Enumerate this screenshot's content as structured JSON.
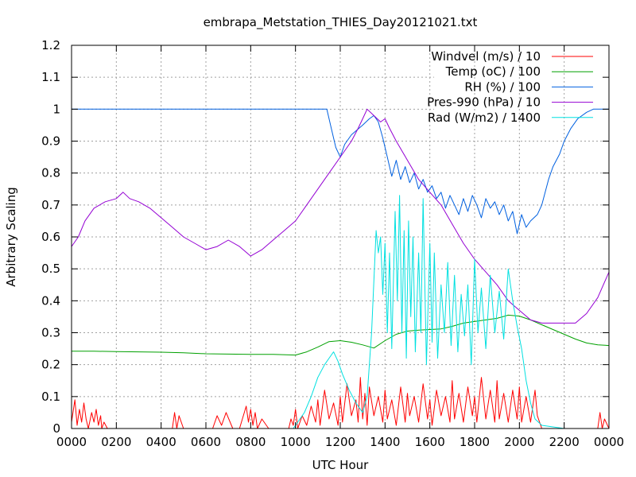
{
  "chart_data": {
    "type": "line",
    "title": "embrapa_Metstation_THIES_Day20121021.txt",
    "xlabel": "UTC Hour",
    "ylabel": "Arbitrary Scaling",
    "xlim": [
      0,
      24
    ],
    "ylim": [
      0,
      1.2
    ],
    "grid": true,
    "legend_position": "top-right",
    "x_tick_labels": [
      "0000",
      "0200",
      "0400",
      "0600",
      "0800",
      "1000",
      "1200",
      "1400",
      "1600",
      "1800",
      "2000",
      "2200",
      "0000"
    ],
    "y_tick_labels": [
      "0",
      "0.1",
      "0.2",
      "0.3",
      "0.4",
      "0.5",
      "0.6",
      "0.7",
      "0.8",
      "0.9",
      "1",
      "1.1",
      "1.2"
    ],
    "series": [
      {
        "name": "Windvel (m/s) / 10",
        "color": "#ff0000",
        "x": [
          0,
          0.15,
          0.25,
          0.35,
          0.45,
          0.55,
          0.65,
          0.75,
          0.9,
          1.0,
          1.1,
          1.2,
          1.3,
          1.35,
          1.45,
          1.6,
          2.0,
          2.5,
          3.0,
          4.5,
          4.6,
          4.7,
          4.8,
          5.0,
          6.3,
          6.5,
          6.7,
          6.9,
          7.2,
          7.5,
          7.8,
          7.9,
          8.0,
          8.1,
          8.2,
          8.3,
          8.5,
          8.8,
          9.0,
          9.7,
          9.8,
          9.9,
          10.0,
          10.1,
          10.3,
          10.5,
          10.7,
          10.9,
          11.0,
          11.1,
          11.3,
          11.5,
          11.7,
          11.9,
          12.0,
          12.1,
          12.3,
          12.5,
          12.7,
          12.8,
          12.9,
          13.0,
          13.1,
          13.2,
          13.3,
          13.5,
          13.7,
          13.9,
          14.0,
          14.1,
          14.3,
          14.5,
          14.7,
          14.9,
          15.0,
          15.1,
          15.3,
          15.5,
          15.7,
          15.9,
          16.0,
          16.1,
          16.3,
          16.5,
          16.7,
          16.9,
          17.0,
          17.1,
          17.3,
          17.5,
          17.7,
          17.9,
          18.0,
          18.1,
          18.3,
          18.5,
          18.7,
          18.9,
          19.0,
          19.1,
          19.3,
          19.5,
          19.7,
          19.9,
          20.0,
          20.1,
          20.3,
          20.5,
          20.7,
          20.8,
          21.0,
          21.5,
          22.0,
          22.5,
          23.0,
          23.5,
          23.6,
          23.7,
          23.8,
          24.0
        ],
        "values": [
          0.02,
          0.09,
          0.01,
          0.06,
          0.02,
          0.08,
          0.03,
          0.0,
          0.05,
          0.02,
          0.06,
          0.01,
          0.04,
          0.0,
          0.02,
          0.0,
          0.0,
          0.0,
          0.0,
          0.0,
          0.05,
          0.0,
          0.04,
          0.0,
          0.0,
          0.04,
          0.01,
          0.05,
          0.0,
          0.0,
          0.07,
          0.02,
          0.06,
          0.01,
          0.05,
          0.0,
          0.03,
          0.0,
          0.0,
          0.0,
          0.03,
          0.01,
          0.06,
          0.0,
          0.04,
          0.01,
          0.07,
          0.02,
          0.09,
          0.01,
          0.12,
          0.03,
          0.08,
          0.01,
          0.1,
          0.02,
          0.14,
          0.04,
          0.09,
          0.02,
          0.16,
          0.03,
          0.11,
          0.01,
          0.13,
          0.04,
          0.1,
          0.02,
          0.12,
          0.03,
          0.09,
          0.01,
          0.13,
          0.02,
          0.11,
          0.04,
          0.1,
          0.02,
          0.14,
          0.03,
          0.09,
          0.01,
          0.12,
          0.04,
          0.1,
          0.02,
          0.15,
          0.03,
          0.11,
          0.02,
          0.13,
          0.04,
          0.1,
          0.02,
          0.16,
          0.03,
          0.12,
          0.02,
          0.15,
          0.03,
          0.11,
          0.02,
          0.12,
          0.03,
          0.13,
          0.02,
          0.1,
          0.02,
          0.12,
          0.04,
          0.0,
          0.0,
          0.0,
          0.0,
          0.0,
          0.0,
          0.05,
          0.0,
          0.03,
          0.0
        ]
      },
      {
        "name": "Temp (oC) / 100",
        "color": "#00a000",
        "x": [
          0,
          1,
          2,
          3,
          4,
          5,
          6,
          7,
          8,
          9,
          10,
          10.5,
          11,
          11.5,
          12,
          12.5,
          13,
          13.5,
          14,
          14.5,
          15,
          15.5,
          16,
          16.5,
          17,
          17.5,
          18,
          18.5,
          19,
          19.5,
          20,
          20.5,
          21,
          21.5,
          22,
          22.5,
          23,
          23.5,
          24
        ],
        "values": [
          0.242,
          0.242,
          0.241,
          0.24,
          0.239,
          0.237,
          0.234,
          0.233,
          0.232,
          0.232,
          0.23,
          0.24,
          0.255,
          0.272,
          0.275,
          0.27,
          0.262,
          0.252,
          0.275,
          0.295,
          0.305,
          0.308,
          0.31,
          0.312,
          0.32,
          0.33,
          0.335,
          0.34,
          0.345,
          0.355,
          0.352,
          0.34,
          0.325,
          0.31,
          0.295,
          0.28,
          0.268,
          0.262,
          0.26
        ]
      },
      {
        "name": "RH (%) / 100",
        "color": "#0060e0",
        "x": [
          0,
          11.4,
          11.6,
          11.8,
          12.0,
          12.2,
          12.5,
          13.0,
          13.3,
          13.5,
          13.7,
          13.9,
          14.1,
          14.3,
          14.5,
          14.7,
          14.9,
          15.1,
          15.3,
          15.5,
          15.7,
          15.9,
          16.1,
          16.3,
          16.5,
          16.7,
          16.9,
          17.1,
          17.3,
          17.5,
          17.7,
          17.9,
          18.1,
          18.3,
          18.5,
          18.7,
          18.9,
          19.1,
          19.3,
          19.5,
          19.7,
          19.9,
          20.1,
          20.3,
          20.5,
          20.8,
          21.0,
          21.3,
          21.5,
          21.8,
          22.0,
          22.3,
          22.6,
          23.0,
          23.3,
          23.6,
          24
        ],
        "values": [
          1.0,
          1.0,
          0.94,
          0.88,
          0.85,
          0.89,
          0.92,
          0.95,
          0.97,
          0.98,
          0.96,
          0.91,
          0.85,
          0.79,
          0.84,
          0.78,
          0.82,
          0.77,
          0.8,
          0.75,
          0.78,
          0.74,
          0.76,
          0.72,
          0.74,
          0.69,
          0.73,
          0.7,
          0.67,
          0.72,
          0.68,
          0.73,
          0.7,
          0.66,
          0.72,
          0.69,
          0.71,
          0.67,
          0.7,
          0.65,
          0.68,
          0.61,
          0.67,
          0.63,
          0.65,
          0.67,
          0.7,
          0.78,
          0.82,
          0.86,
          0.9,
          0.94,
          0.97,
          0.99,
          1.0,
          1.0,
          1.0
        ]
      },
      {
        "name": "Pres-990 (hPa) / 10",
        "color": "#9400d3",
        "x": [
          0,
          0.3,
          0.6,
          1.0,
          1.5,
          2.0,
          2.3,
          2.6,
          3.0,
          3.5,
          4.0,
          4.5,
          5.0,
          5.5,
          6.0,
          6.5,
          7.0,
          7.5,
          8.0,
          8.5,
          9.0,
          9.5,
          10.0,
          10.5,
          11.0,
          11.5,
          12.0,
          12.5,
          12.8,
          13.0,
          13.2,
          13.5,
          13.8,
          14.0,
          14.2,
          14.5,
          15.0,
          15.5,
          16.0,
          16.5,
          17.0,
          17.5,
          18.0,
          18.5,
          19.0,
          19.5,
          20.0,
          20.5,
          21.0,
          21.5,
          22.0,
          22.5,
          23.0,
          23.5,
          24
        ],
        "values": [
          0.57,
          0.6,
          0.65,
          0.69,
          0.71,
          0.72,
          0.74,
          0.72,
          0.71,
          0.69,
          0.66,
          0.63,
          0.6,
          0.58,
          0.56,
          0.57,
          0.59,
          0.57,
          0.54,
          0.56,
          0.59,
          0.62,
          0.65,
          0.7,
          0.75,
          0.8,
          0.85,
          0.9,
          0.94,
          0.97,
          1.0,
          0.98,
          0.96,
          0.97,
          0.94,
          0.9,
          0.84,
          0.78,
          0.74,
          0.7,
          0.64,
          0.58,
          0.53,
          0.49,
          0.45,
          0.4,
          0.37,
          0.34,
          0.33,
          0.33,
          0.33,
          0.33,
          0.36,
          0.41,
          0.49
        ]
      },
      {
        "name": "Rad (W/m2) / 1400",
        "color": "#00e0e0",
        "x": [
          0,
          9.9,
          10.1,
          10.4,
          10.7,
          11.0,
          11.3,
          11.5,
          11.7,
          11.9,
          12.1,
          12.4,
          12.7,
          13.0,
          13.2,
          13.4,
          13.6,
          13.7,
          13.8,
          13.9,
          14.0,
          14.1,
          14.2,
          14.3,
          14.45,
          14.55,
          14.65,
          14.75,
          14.85,
          14.95,
          15.05,
          15.15,
          15.25,
          15.35,
          15.5,
          15.6,
          15.7,
          15.85,
          16.0,
          16.1,
          16.2,
          16.35,
          16.5,
          16.65,
          16.8,
          16.95,
          17.1,
          17.25,
          17.4,
          17.55,
          17.7,
          17.85,
          18.0,
          18.15,
          18.3,
          18.5,
          18.7,
          18.9,
          19.1,
          19.3,
          19.5,
          19.7,
          19.9,
          20.1,
          20.3,
          20.5,
          20.7,
          21.0,
          22.0,
          24
        ],
        "values": [
          0,
          0,
          0.02,
          0.05,
          0.1,
          0.16,
          0.2,
          0.22,
          0.24,
          0.21,
          0.17,
          0.12,
          0.08,
          0.05,
          0.1,
          0.3,
          0.62,
          0.55,
          0.6,
          0.42,
          0.58,
          0.3,
          0.55,
          0.25,
          0.68,
          0.4,
          0.73,
          0.3,
          0.62,
          0.22,
          0.65,
          0.35,
          0.6,
          0.24,
          0.55,
          0.3,
          0.72,
          0.2,
          0.58,
          0.27,
          0.55,
          0.22,
          0.45,
          0.3,
          0.52,
          0.26,
          0.48,
          0.24,
          0.42,
          0.29,
          0.45,
          0.2,
          0.53,
          0.3,
          0.44,
          0.25,
          0.48,
          0.3,
          0.43,
          0.28,
          0.5,
          0.4,
          0.32,
          0.25,
          0.15,
          0.08,
          0.03,
          0.01,
          0,
          0
        ]
      }
    ]
  }
}
